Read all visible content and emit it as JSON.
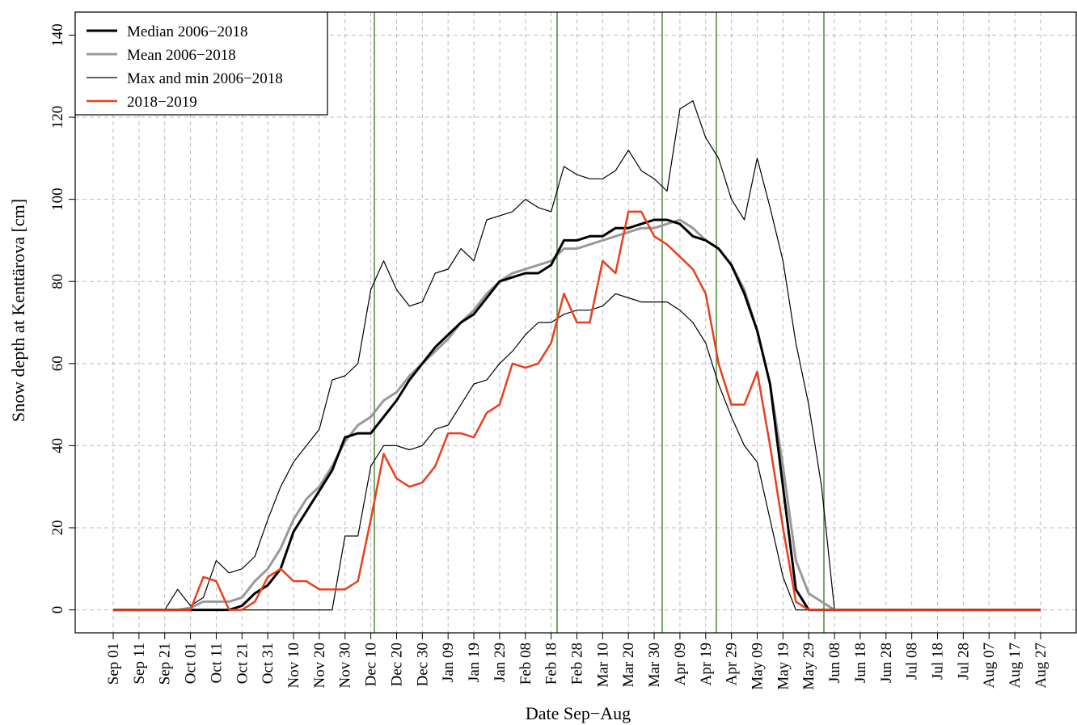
{
  "chart_data": {
    "type": "line",
    "y_label": "Snow depth at Kenttärova [cm]",
    "x_label": "Date Sep−Aug",
    "categories": [
      "Sep 01",
      null,
      "Sep 11",
      null,
      "Sep 21",
      null,
      "Oct 01",
      null,
      "Oct 11",
      null,
      "Oct 21",
      null,
      "Oct 31",
      null,
      "Nov 10",
      null,
      "Nov 20",
      null,
      "Nov 30",
      null,
      "Dec 10",
      null,
      "Dec 20",
      null,
      "Dec 30",
      null,
      "Jan 09",
      null,
      "Jan 19",
      null,
      "Jan 29",
      null,
      "Feb 08",
      null,
      "Feb 18",
      null,
      "Feb 28",
      null,
      "Mar 10",
      null,
      "Mar 20",
      null,
      "Mar 30",
      null,
      "Apr 09",
      null,
      "Apr 19",
      null,
      "Apr 29",
      null,
      "May 09",
      null,
      "May 19",
      null,
      "May 29",
      null,
      "Jun 08",
      null,
      "Jun 18",
      null,
      "Jun 28",
      null,
      "Jul 08",
      null,
      "Jul 18",
      null,
      "Jul 28",
      null,
      "Aug 07",
      null,
      "Aug 17",
      null,
      "Aug 27"
    ],
    "series": [
      {
        "name": "Median 2006−2018",
        "color": "#000000",
        "line_width": 3,
        "values": [
          0,
          0,
          0,
          0,
          0,
          0,
          0,
          0,
          0,
          0,
          1,
          4,
          6,
          10,
          19,
          24,
          29,
          34,
          42,
          43,
          43,
          47,
          51,
          56,
          60,
          64,
          67,
          70,
          72,
          76,
          80,
          81,
          82,
          82,
          84,
          90,
          90,
          91,
          91,
          93,
          93,
          94,
          95,
          95,
          94,
          91,
          90,
          88,
          84,
          77,
          68,
          55,
          30,
          5,
          0,
          0,
          0,
          0,
          0,
          0,
          0,
          0,
          0,
          0,
          0,
          0,
          0,
          0,
          0,
          0,
          0,
          0,
          0
        ]
      },
      {
        "name": "Mean 2006−2018",
        "color": "#999999",
        "line_width": 3,
        "values": [
          0,
          0,
          0,
          0,
          0,
          0,
          0.5,
          2,
          2,
          2,
          3,
          7,
          10,
          15,
          22,
          27,
          30,
          35,
          41,
          45,
          47,
          51,
          53,
          57,
          60,
          63,
          66,
          70,
          73,
          77,
          80,
          82,
          83,
          84,
          85,
          88,
          88,
          89,
          90,
          91,
          92,
          93,
          93,
          94,
          95,
          93,
          90,
          88,
          84,
          78,
          68,
          55,
          35,
          12,
          4,
          2,
          0,
          0,
          0,
          0,
          0,
          0,
          0,
          0,
          0,
          0,
          0,
          0,
          0,
          0,
          0,
          0,
          0
        ]
      },
      {
        "name": "Max and min 2006−2018",
        "color": "#000000",
        "line_width": 1.2,
        "values": [
          0,
          0,
          0,
          0,
          0,
          5,
          1,
          3,
          12,
          9,
          10,
          13,
          22,
          30,
          36,
          40,
          44,
          56,
          57,
          60,
          78,
          85,
          78,
          74,
          75,
          82,
          83,
          88,
          85,
          95,
          96,
          97,
          100,
          98,
          97,
          108,
          106,
          105,
          105,
          107,
          112,
          107,
          105,
          102,
          122,
          124,
          115,
          110,
          100,
          95,
          110,
          98,
          85,
          65,
          50,
          30,
          0,
          0,
          0,
          0,
          0,
          0,
          0,
          0,
          0,
          0,
          0,
          0,
          0,
          0,
          0,
          0,
          0
        ],
        "lower": [
          0,
          0,
          0,
          0,
          0,
          0,
          0,
          0,
          0,
          0,
          0,
          0,
          0,
          0,
          0,
          0,
          0,
          0,
          18,
          18,
          35,
          40,
          40,
          39,
          40,
          44,
          45,
          50,
          55,
          56,
          60,
          63,
          67,
          70,
          70,
          72,
          73,
          73,
          74,
          77,
          76,
          75,
          75,
          75,
          73,
          70,
          65,
          55,
          47,
          40,
          36,
          22,
          8,
          0,
          0,
          0,
          0,
          0,
          0,
          0,
          0,
          0,
          0,
          0,
          0,
          0,
          0,
          0,
          0,
          0,
          0,
          0,
          0
        ]
      },
      {
        "name": "2018−2019",
        "color": "#e8401c",
        "line_width": 2.5,
        "values": [
          0,
          0,
          0,
          0,
          0,
          0,
          0,
          8,
          7,
          0,
          0,
          2,
          8,
          10,
          7,
          7,
          5,
          5,
          5,
          7,
          22,
          38,
          32,
          30,
          31,
          35,
          43,
          43,
          42,
          48,
          50,
          60,
          59,
          60,
          65,
          77,
          70,
          70,
          85,
          82,
          97,
          97,
          91,
          89,
          86,
          83,
          77,
          60,
          50,
          50,
          58,
          40,
          20,
          2,
          0,
          0,
          0,
          0,
          0,
          0,
          0,
          0,
          0,
          0,
          0,
          0,
          0,
          0,
          0,
          0,
          0,
          0,
          0
        ]
      }
    ],
    "ylim": [
      -5.6,
      145.6
    ],
    "yticks": [
      0,
      20,
      40,
      60,
      80,
      100,
      120,
      140
    ],
    "grid": true,
    "legend": "top-left"
  }
}
